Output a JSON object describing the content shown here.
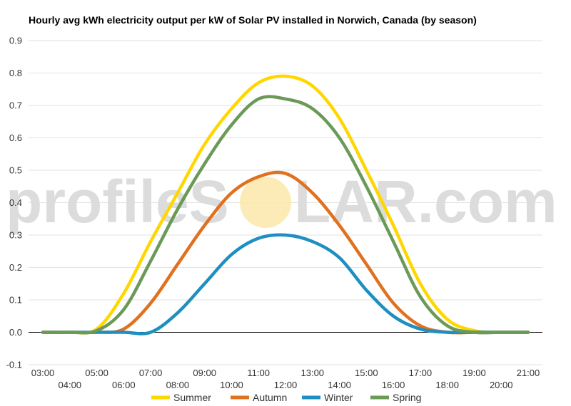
{
  "chart_data": {
    "type": "line",
    "title": "Hourly avg kWh electricity output per kW of Solar PV installed in Norwich, Canada (by season)",
    "watermark_left": "profileS",
    "watermark_right": "LAR.com",
    "x": [
      "03:00",
      "04:00",
      "05:00",
      "06:00",
      "07:00",
      "08:00",
      "09:00",
      "10:00",
      "11:00",
      "12:00",
      "13:00",
      "14:00",
      "15:00",
      "16:00",
      "17:00",
      "18:00",
      "19:00",
      "20:00",
      "21:00"
    ],
    "ylim": [
      -0.1,
      0.9
    ],
    "yticks": [
      "-0.1",
      "0.0",
      "0.1",
      "0.2",
      "0.3",
      "0.4",
      "0.5",
      "0.6",
      "0.7",
      "0.8",
      "0.9"
    ],
    "grid": true,
    "legend_position": "bottom",
    "series": [
      {
        "name": "Summer",
        "color": "#FFD700",
        "values": [
          0.0,
          0.0,
          0.01,
          0.12,
          0.28,
          0.43,
          0.58,
          0.69,
          0.77,
          0.79,
          0.76,
          0.66,
          0.5,
          0.33,
          0.15,
          0.04,
          0.005,
          0.0,
          0.0
        ]
      },
      {
        "name": "Autumn",
        "color": "#E0711F",
        "values": [
          0.0,
          0.0,
          0.0,
          0.01,
          0.09,
          0.21,
          0.33,
          0.43,
          0.48,
          0.49,
          0.43,
          0.33,
          0.21,
          0.09,
          0.02,
          0.0,
          0.0,
          0.0,
          0.0
        ]
      },
      {
        "name": "Winter",
        "color": "#1E8FC0",
        "values": [
          0.0,
          0.0,
          0.0,
          0.0,
          0.0,
          0.06,
          0.15,
          0.24,
          0.29,
          0.3,
          0.28,
          0.23,
          0.13,
          0.05,
          0.01,
          0.0,
          0.0,
          0.0,
          0.0
        ]
      },
      {
        "name": "Spring",
        "color": "#6B9A57",
        "values": [
          0.0,
          0.0,
          0.005,
          0.07,
          0.22,
          0.38,
          0.52,
          0.64,
          0.72,
          0.72,
          0.69,
          0.6,
          0.45,
          0.28,
          0.11,
          0.02,
          0.0,
          0.0,
          0.0
        ]
      }
    ]
  }
}
